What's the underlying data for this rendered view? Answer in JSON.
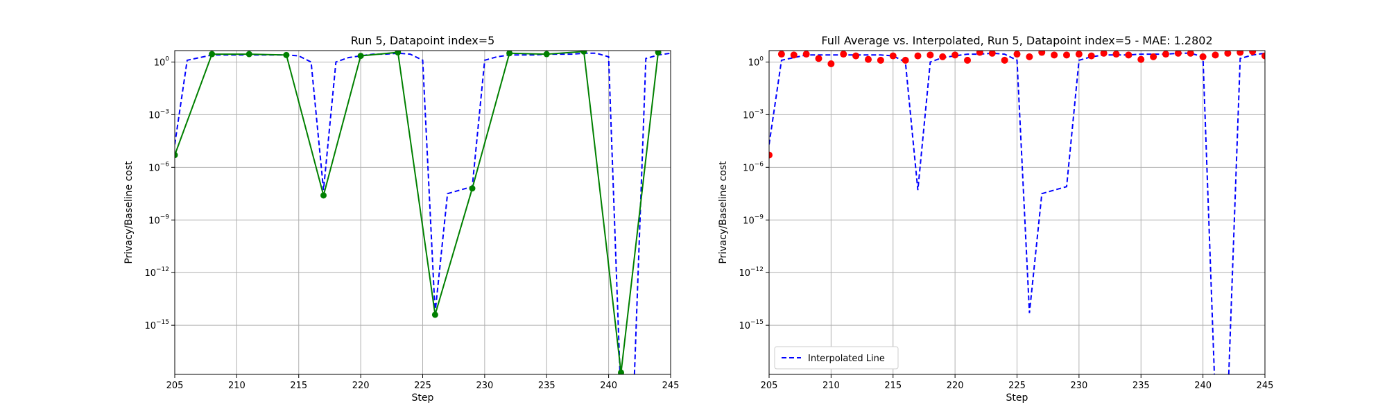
{
  "chart_data": [
    {
      "type": "line",
      "title": "Run 5, Datapoint index=5",
      "xlabel": "Step",
      "ylabel": "Privacy/Baseline cost",
      "xlim": [
        205,
        245
      ],
      "ylim_exp": [
        -17.8,
        0.65
      ],
      "yscale": "log",
      "grid": true,
      "xticks": [
        "205",
        "210",
        "215",
        "220",
        "225",
        "230",
        "235",
        "240",
        "245"
      ],
      "yticks": [
        {
          "base": "10",
          "exp": "0"
        },
        {
          "base": "10",
          "exp": "−3"
        },
        {
          "base": "10",
          "exp": "−6"
        },
        {
          "base": "10",
          "exp": "−9"
        },
        {
          "base": "10",
          "exp": "−12"
        },
        {
          "base": "10",
          "exp": "−15"
        }
      ],
      "series": [
        {
          "style": "dashed",
          "color": "#0000ff",
          "x": [
            205,
            206,
            207,
            208,
            209,
            210,
            211,
            212,
            213,
            214,
            215,
            216,
            217,
            218,
            219,
            220,
            221,
            222,
            223,
            224,
            225,
            226,
            227,
            228,
            229,
            230,
            231,
            232,
            233,
            234,
            235,
            236,
            237,
            238,
            239,
            240,
            241,
            242,
            243,
            244,
            245
          ],
          "log10y": [
            -4.7,
            0.1,
            0.25,
            0.4,
            0.4,
            0.4,
            0.4,
            0.4,
            0.4,
            0.4,
            0.35,
            0.0,
            -7.3,
            0.0,
            0.25,
            0.35,
            0.45,
            0.45,
            0.5,
            0.45,
            0.1,
            -14.3,
            -7.5,
            -7.3,
            -7.1,
            0.1,
            0.3,
            0.4,
            0.4,
            0.4,
            0.45,
            0.45,
            0.45,
            0.5,
            0.5,
            0.3,
            null,
            null,
            0.2,
            0.4,
            0.5
          ]
        },
        {
          "style": "solid-markers",
          "color": "#008000",
          "x": [
            205,
            208,
            211,
            214,
            217,
            220,
            223,
            226,
            229,
            232,
            235,
            238,
            241,
            244
          ],
          "log10y": [
            -5.3,
            0.45,
            0.45,
            0.4,
            -7.6,
            0.35,
            0.55,
            -14.4,
            -7.2,
            0.5,
            0.45,
            0.6,
            -17.7,
            0.55
          ]
        }
      ]
    },
    {
      "type": "scatter",
      "title": "Full Average vs. Interpolated, Run 5, Datapoint index=5 - MAE: 1.2802",
      "xlabel": "Step",
      "ylabel": "Privacy/Baseline cost",
      "xlim": [
        205,
        245
      ],
      "ylim_exp": [
        -17.8,
        0.65
      ],
      "yscale": "log",
      "grid": true,
      "legend_position": "lower-left",
      "xticks": [
        "205",
        "210",
        "215",
        "220",
        "225",
        "230",
        "235",
        "240",
        "245"
      ],
      "yticks": [
        {
          "base": "10",
          "exp": "0"
        },
        {
          "base": "10",
          "exp": "−3"
        },
        {
          "base": "10",
          "exp": "−6"
        },
        {
          "base": "10",
          "exp": "−9"
        },
        {
          "base": "10",
          "exp": "−12"
        },
        {
          "base": "10",
          "exp": "−15"
        }
      ],
      "series": [
        {
          "name": "Interpolated Line",
          "style": "dashed",
          "color": "#0000ff",
          "x": [
            205,
            206,
            207,
            208,
            209,
            210,
            211,
            212,
            213,
            214,
            215,
            216,
            217,
            218,
            219,
            220,
            221,
            222,
            223,
            224,
            225,
            226,
            227,
            228,
            229,
            230,
            231,
            232,
            233,
            234,
            235,
            236,
            237,
            238,
            239,
            240,
            241,
            242,
            243,
            244,
            245
          ],
          "log10y": [
            -4.7,
            0.1,
            0.25,
            0.4,
            0.4,
            0.4,
            0.4,
            0.4,
            0.4,
            0.4,
            0.35,
            0.0,
            -7.3,
            0.0,
            0.25,
            0.35,
            0.45,
            0.45,
            0.5,
            0.45,
            0.1,
            -14.3,
            -7.5,
            -7.3,
            -7.1,
            0.1,
            0.3,
            0.4,
            0.4,
            0.4,
            0.45,
            0.45,
            0.45,
            0.5,
            0.5,
            0.3,
            null,
            null,
            0.2,
            0.4,
            0.5
          ]
        },
        {
          "style": "scatter",
          "color": "#ff0000",
          "x": [
            205,
            206,
            207,
            208,
            209,
            210,
            211,
            212,
            213,
            214,
            215,
            216,
            217,
            218,
            219,
            220,
            221,
            222,
            223,
            224,
            225,
            226,
            227,
            228,
            229,
            230,
            231,
            232,
            233,
            234,
            235,
            236,
            237,
            238,
            239,
            240,
            241,
            242,
            243,
            244,
            245
          ],
          "log10y": [
            -5.3,
            0.45,
            0.4,
            0.45,
            0.2,
            -0.1,
            0.45,
            0.35,
            0.15,
            0.1,
            0.35,
            0.1,
            0.35,
            0.4,
            0.3,
            0.4,
            0.1,
            0.55,
            0.5,
            0.1,
            0.45,
            0.3,
            0.55,
            0.4,
            0.4,
            0.45,
            0.35,
            0.5,
            0.45,
            0.4,
            0.15,
            0.3,
            0.45,
            0.5,
            0.5,
            0.3,
            0.4,
            0.5,
            0.55,
            0.6,
            0.35
          ]
        }
      ]
    }
  ]
}
